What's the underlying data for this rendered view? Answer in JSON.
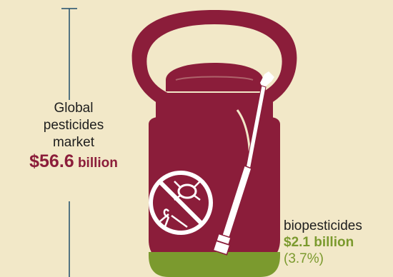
{
  "market": {
    "label_line1": "Global",
    "label_line2": "pesticides",
    "label_line3": "market",
    "total_amount": "$56.6",
    "total_unit": "billion"
  },
  "biopesticides": {
    "label": "biopesticides",
    "amount": "$2.1",
    "unit": "billion",
    "share": "(3.7%)",
    "share_fraction": 0.037
  },
  "colors": {
    "background": "#f2e8c8",
    "canister": "#8b1d3a",
    "bio_fill": "#7b9a2e",
    "line": "#1f4e6b"
  },
  "icons": [
    "pesticide-canister-icon",
    "sprayer-wand-icon",
    "no-bugs-icon"
  ]
}
